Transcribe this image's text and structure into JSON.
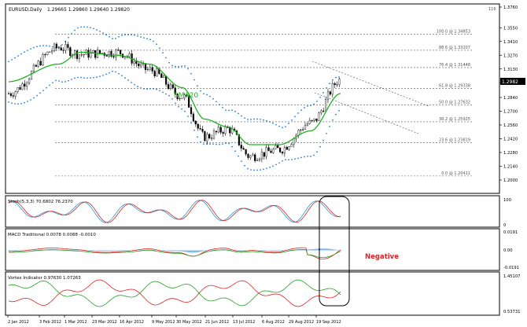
{
  "header": {
    "symbol": "EURUSD,Daily",
    "ohlc": "1.29665 1.29860 1.29640 1.29820"
  },
  "main_panel": {
    "price_axis": [
      "1.3760",
      "1.3550",
      "1.3410",
      "1.3270",
      "1.3130",
      "1.2990",
      "1.2840",
      "1.2700",
      "1.2560",
      "1.2420",
      "1.2280",
      "1.2140",
      "1.2000"
    ],
    "current_price": "1.2982",
    "top_label": "116",
    "fib_levels": [
      {
        "label": "100.0 @ 1.34853",
        "value": 1.34853
      },
      {
        "label": "88.6 @ 1.33207",
        "value": 1.33207
      },
      {
        "label": "76.4 @ 1.31448",
        "value": 1.31448
      },
      {
        "label": "61.8 @ 1.29338",
        "value": 1.29338
      },
      {
        "label": "50.0 @ 1.27632",
        "value": 1.27632
      },
      {
        "label": "38.2 @ 1.25925",
        "value": 1.25925
      },
      {
        "label": "23.6 @ 1.23819",
        "value": 1.23819
      },
      {
        "label": "0.0 @ 1.20411",
        "value": 1.20411
      }
    ],
    "sma_label": "SMA20",
    "colors": {
      "candles": "#000000",
      "sma": "#22b022",
      "bollinger": "#2a7fd4",
      "fib": "#555555",
      "trend": "#4a4a6a"
    }
  },
  "stoch_panel": {
    "label": "Stoch(5,3,3) 70.6802 76.2370",
    "axis": [
      "100",
      "0"
    ],
    "colors": {
      "main": "#2a9bd8",
      "signal": "#e02020"
    }
  },
  "macd_panel": {
    "label": "MACD Traditional 0.0078 0.0088 -0.0010",
    "axis": [
      "0.0191",
      "0.00",
      "-0.0191"
    ],
    "callout": "Negative",
    "colors": {
      "histogram": "#2a7fd4",
      "macd": "#e02020",
      "signal": "#22a022",
      "callout": "#e02020"
    }
  },
  "vortex_panel": {
    "label": "Vortex Indicator 0.97630 1.07263",
    "axis": [
      "1.45107",
      "0.53731"
    ],
    "colors": {
      "plus": "#22a022",
      "minus": "#e02020"
    }
  },
  "date_axis": [
    "2 Jan 2012",
    "3 Feb 2012",
    "1 Mar 2012",
    "23 Mar 2012",
    "16 Apr 2012",
    "9 May 2012",
    "30 May 2012",
    "21 Jun 2012",
    "13 Jul 2012",
    "6 Aug 2012",
    "29 Aug 2012",
    "19 Sep 2012"
  ],
  "chart_data": {
    "type": "line",
    "x": [
      "2 Jan 2012",
      "3 Feb 2012",
      "1 Mar 2012",
      "23 Mar 2012",
      "16 Apr 2012",
      "9 May 2012",
      "30 May 2012",
      "21 Jun 2012",
      "13 Jul 2012",
      "6 Aug 2012",
      "29 Aug 2012",
      "19 Sep 2012"
    ],
    "series": [
      {
        "name": "EURUSD,Daily",
        "values": [
          1.288,
          1.335,
          1.328,
          1.33,
          1.312,
          1.285,
          1.244,
          1.252,
          1.224,
          1.231,
          1.258,
          1.302
        ]
      },
      {
        "name": "SMA20",
        "values": [
          1.3,
          1.318,
          1.33,
          1.327,
          1.318,
          1.294,
          1.262,
          1.254,
          1.236,
          1.236,
          1.25,
          1.288
        ]
      }
    ],
    "ylim": [
      1.2,
      1.376
    ]
  }
}
